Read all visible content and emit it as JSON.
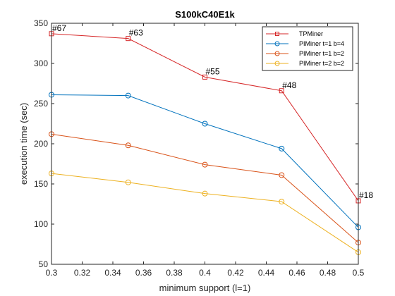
{
  "chart_data": {
    "type": "line",
    "title": "S100kC40E1k",
    "xlabel": "minimum support (l=1)",
    "ylabel": "execution time (sec)",
    "xlim": [
      0.3,
      0.5
    ],
    "ylim": [
      50,
      350
    ],
    "x_ticks": [
      0.3,
      0.32,
      0.34,
      0.36,
      0.38,
      0.4,
      0.42,
      0.44,
      0.46,
      0.48,
      0.5
    ],
    "x_tick_labels": [
      "0.3",
      "0.32",
      "0.34",
      "0.36",
      "0.38",
      "0.4",
      "0.42",
      "0.44",
      "0.46",
      "0.48",
      "0.5"
    ],
    "y_ticks": [
      50,
      100,
      150,
      200,
      250,
      300,
      350
    ],
    "y_tick_labels": [
      "50",
      "100",
      "150",
      "200",
      "250",
      "300",
      "350"
    ],
    "grid": false,
    "legend_position": "top-right",
    "x": [
      0.3,
      0.35,
      0.4,
      0.45,
      0.5
    ],
    "series": [
      {
        "name": "TPMiner",
        "values": [
          337,
          331,
          283,
          266,
          129
        ],
        "color": "#d62728",
        "marker": "square"
      },
      {
        "name": "PIMiner t=1 b=4",
        "values": [
          261,
          260,
          225,
          194,
          96
        ],
        "color": "#0072bd",
        "marker": "circle"
      },
      {
        "name": "PIMiner t=1 b=2",
        "values": [
          212,
          198,
          174,
          161,
          77
        ],
        "color": "#d95319",
        "marker": "circle"
      },
      {
        "name": "PIMiner t=2 b=2",
        "values": [
          163,
          152,
          138,
          128,
          65
        ],
        "color": "#edb120",
        "marker": "circle"
      }
    ],
    "annotations": [
      {
        "x": 0.3,
        "y": 337,
        "text": "#67"
      },
      {
        "x": 0.35,
        "y": 331,
        "text": "#63"
      },
      {
        "x": 0.4,
        "y": 283,
        "text": "#55"
      },
      {
        "x": 0.45,
        "y": 266,
        "text": "#48"
      },
      {
        "x": 0.5,
        "y": 129,
        "text": "#18"
      }
    ]
  }
}
